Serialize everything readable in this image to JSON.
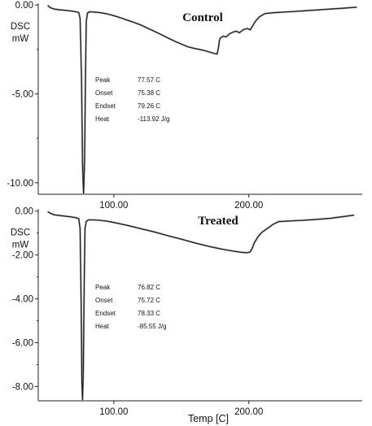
{
  "chart_data": [
    {
      "type": "line",
      "title": "Control",
      "ylabel": "DSC\nmW",
      "ylim": [
        -10.65,
        0.1
      ],
      "yticks": [
        0.0,
        -5.0,
        -10.0
      ],
      "ytick_labels": [
        "0.00",
        "-5.00",
        "-10.00"
      ],
      "xlim": [
        44,
        284
      ],
      "xticks": [
        100,
        200
      ],
      "xtick_labels": [
        "100.00",
        "200.00"
      ],
      "annotation": {
        "labels": [
          "Peak",
          "Onset",
          "Endset",
          "Heat"
        ],
        "values": [
          "77.57 C",
          "75.38 C",
          "79.26 C",
          "-113.92  J/g"
        ]
      },
      "series": [
        {
          "x": [
            51,
            53,
            56,
            60,
            64,
            68,
            72,
            74,
            75,
            76,
            76.8,
            77.57,
            78.3,
            79,
            79.6,
            80.5,
            82,
            86,
            90,
            95,
            100,
            105,
            110,
            115,
            120,
            125,
            130,
            135,
            140,
            145,
            150,
            155,
            160,
            165,
            168,
            171,
            174,
            176.5,
            177.5,
            178.2,
            179,
            181,
            183,
            186,
            189,
            191,
            193,
            196,
            199,
            201,
            203,
            205,
            208,
            212,
            220,
            230,
            240,
            250,
            260,
            270,
            280
          ],
          "y": [
            -0.02,
            -0.15,
            -0.23,
            -0.27,
            -0.3,
            -0.33,
            -0.38,
            -0.42,
            -0.75,
            -4.0,
            -9.0,
            -10.62,
            -8.8,
            -4.0,
            -0.9,
            -0.45,
            -0.38,
            -0.4,
            -0.43,
            -0.5,
            -0.6,
            -0.72,
            -0.85,
            -0.98,
            -1.12,
            -1.3,
            -1.48,
            -1.66,
            -1.85,
            -2.03,
            -2.2,
            -2.35,
            -2.45,
            -2.52,
            -2.58,
            -2.65,
            -2.72,
            -2.76,
            -2.4,
            -2.0,
            -1.85,
            -1.75,
            -1.8,
            -1.6,
            -1.5,
            -1.48,
            -1.56,
            -1.38,
            -1.32,
            -1.4,
            -1.15,
            -0.9,
            -0.65,
            -0.48,
            -0.42,
            -0.38,
            -0.33,
            -0.28,
            -0.23,
            -0.18,
            -0.12
          ]
        }
      ]
    },
    {
      "type": "line",
      "title": "Treated",
      "ylabel": "DSC\nmW",
      "ylim": [
        -8.65,
        0.1
      ],
      "yticks": [
        0.0,
        -2.0,
        -4.0,
        -6.0,
        -8.0
      ],
      "ytick_labels": [
        "0.00",
        "-2.00",
        "-4.00",
        "-6.00",
        "-8.00"
      ],
      "xlim": [
        44,
        284
      ],
      "xticks": [
        100,
        200
      ],
      "xtick_labels": [
        "100.00",
        "200.00"
      ],
      "xlabel": "Temp  [C]",
      "annotation": {
        "labels": [
          "Peak",
          "Onset",
          "Endset",
          "Heat"
        ],
        "values": [
          "76.82 C",
          "75.72 C",
          "78.33 C",
          "-85.55  J/g"
        ]
      },
      "series": [
        {
          "x": [
            51,
            53,
            56,
            60,
            64,
            68,
            72,
            74,
            75,
            75.8,
            76.3,
            76.82,
            77.4,
            78,
            78.6,
            79.5,
            81,
            85,
            90,
            95,
            100,
            110,
            120,
            130,
            140,
            150,
            160,
            170,
            180,
            190,
            195,
            199,
            201,
            202.5,
            204,
            207,
            210,
            214,
            218,
            222,
            230,
            240,
            250,
            260,
            270,
            278
          ],
          "y": [
            -0.02,
            -0.1,
            -0.17,
            -0.2,
            -0.23,
            -0.26,
            -0.3,
            -0.35,
            -0.8,
            -4.2,
            -7.8,
            -8.6,
            -7.2,
            -3.5,
            -0.8,
            -0.48,
            -0.4,
            -0.4,
            -0.42,
            -0.46,
            -0.52,
            -0.65,
            -0.8,
            -0.95,
            -1.12,
            -1.28,
            -1.45,
            -1.6,
            -1.73,
            -1.84,
            -1.88,
            -1.9,
            -1.86,
            -1.7,
            -1.45,
            -1.15,
            -0.95,
            -0.78,
            -0.6,
            -0.48,
            -0.45,
            -0.42,
            -0.38,
            -0.33,
            -0.25,
            -0.18
          ]
        }
      ]
    }
  ]
}
